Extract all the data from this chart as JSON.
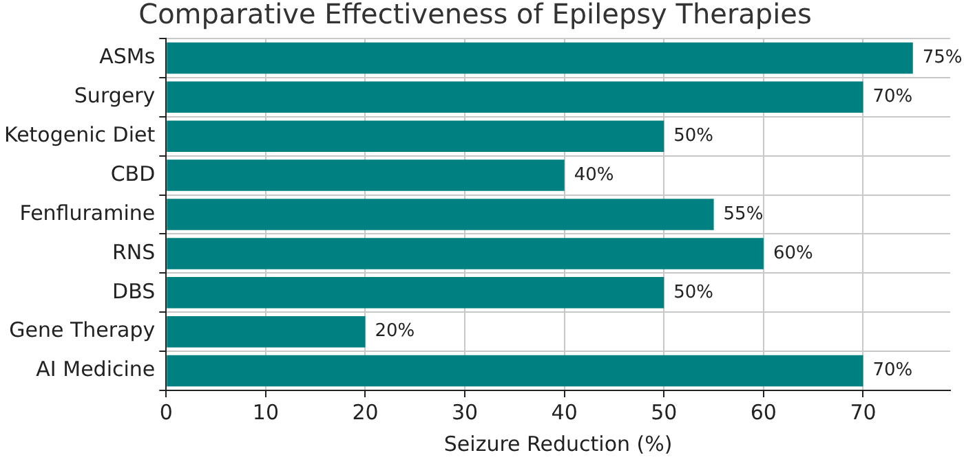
{
  "chart_data": {
    "type": "bar",
    "orientation": "horizontal",
    "title": "Comparative Effectiveness of Epilepsy Therapies",
    "xlabel": "Seizure Reduction (%)",
    "categories": [
      "ASMs",
      "Surgery",
      "Ketogenic Diet",
      "CBD",
      "Fenfluramine",
      "RNS",
      "DBS",
      "Gene Therapy",
      "AI Medicine"
    ],
    "values": [
      75,
      70,
      50,
      40,
      55,
      60,
      50,
      20,
      70
    ],
    "value_labels": [
      "75%",
      "70%",
      "50%",
      "40%",
      "55%",
      "60%",
      "50%",
      "20%",
      "70%"
    ],
    "color": "#008080",
    "xlim": [
      0,
      78.75
    ],
    "xticks": [
      0,
      10,
      20,
      30,
      40,
      50,
      60,
      70
    ],
    "grid": true
  }
}
